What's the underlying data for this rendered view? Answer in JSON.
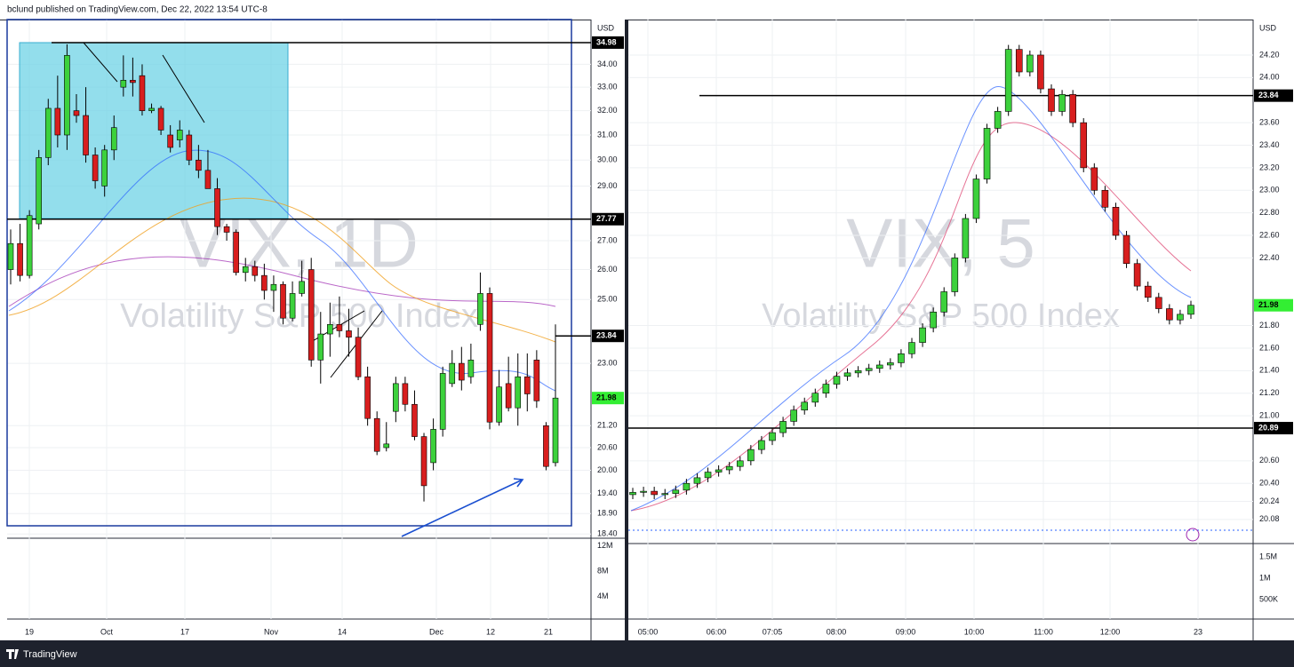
{
  "header": {
    "publisher": "bclund published on TradingView.com, Dec 22, 2022 13:54 UTC-8"
  },
  "footer": {
    "brand": "TradingView"
  },
  "colors": {
    "up": "#3cd13c",
    "down": "#d81e1e",
    "last": "#33ee33"
  },
  "charts": [
    {
      "symbol": "VIX, 1D",
      "name": "Volatility S&P 500 Index",
      "currency": "USD",
      "log_scale": true,
      "ylim": [
        18.6,
        36.05
      ],
      "yticks": [
        {
          "value": 34,
          "label": "34.00"
        },
        {
          "value": 33,
          "label": "33.00"
        },
        {
          "value": 32,
          "label": "32.00"
        },
        {
          "value": 31,
          "label": "31.00"
        },
        {
          "value": 30,
          "label": "30.00"
        },
        {
          "value": 29,
          "label": "29.00"
        },
        {
          "value": 27,
          "label": "27.00"
        },
        {
          "value": 26,
          "label": "26.00"
        },
        {
          "value": 25,
          "label": "25.00"
        },
        {
          "value": 23,
          "label": "23.00"
        },
        {
          "value": 21.2,
          "label": "21.20"
        },
        {
          "value": 20.6,
          "label": "20.60"
        },
        {
          "value": 20,
          "label": "20.00"
        },
        {
          "value": 19.4,
          "label": "19.40"
        },
        {
          "value": 18.9,
          "label": "18.90"
        },
        {
          "value": 18.4,
          "label": "18.40"
        }
      ],
      "price_tags": [
        34.98,
        27.77,
        23.84,
        21.98
      ],
      "volume_ylim": [
        0,
        13200000
      ],
      "volume_ticks": [
        {
          "value": 12000000,
          "label": "12M"
        },
        {
          "value": 8000000,
          "label": "8M"
        },
        {
          "value": 4000000,
          "label": "4M"
        }
      ],
      "time_labels": [
        "19",
        "Oct",
        "17",
        "Nov",
        "14",
        "Dec",
        "12",
        "21"
      ],
      "candles": [
        [
          26.0,
          27.4,
          25.5,
          26.9
        ],
        [
          26.9,
          27.6,
          25.6,
          25.8
        ],
        [
          25.8,
          28.1,
          25.7,
          27.9
        ],
        [
          27.6,
          30.4,
          27.4,
          30.1
        ],
        [
          30.1,
          32.5,
          29.8,
          32.1
        ],
        [
          32.1,
          33.5,
          30.5,
          31.0
        ],
        [
          31.0,
          34.9,
          30.4,
          34.4
        ],
        [
          32.0,
          32.7,
          31.5,
          31.8
        ],
        [
          31.8,
          33.0,
          29.9,
          30.2
        ],
        [
          30.2,
          30.5,
          28.9,
          29.2
        ],
        [
          29.0,
          30.6,
          28.6,
          30.4
        ],
        [
          30.4,
          31.8,
          30.0,
          31.3
        ],
        [
          33.0,
          34.4,
          32.6,
          33.3
        ],
        [
          33.3,
          34.3,
          32.6,
          33.2
        ],
        [
          33.5,
          34.0,
          31.8,
          32.0
        ],
        [
          32.0,
          32.3,
          31.9,
          32.1
        ],
        [
          32.1,
          32.2,
          31.0,
          31.2
        ],
        [
          31.0,
          31.4,
          30.3,
          30.5
        ],
        [
          30.8,
          31.6,
          30.5,
          31.2
        ],
        [
          31.0,
          31.2,
          29.8,
          30.0
        ],
        [
          30.0,
          30.6,
          29.3,
          29.6
        ],
        [
          29.6,
          30.4,
          28.9,
          28.9
        ],
        [
          28.9,
          29.3,
          27.2,
          27.5
        ],
        [
          27.5,
          27.6,
          27.0,
          27.3
        ],
        [
          27.3,
          27.4,
          25.8,
          25.9
        ],
        [
          25.9,
          26.4,
          25.6,
          26.1
        ],
        [
          26.1,
          26.3,
          25.6,
          25.8
        ],
        [
          25.8,
          26.2,
          25.0,
          25.3
        ],
        [
          25.3,
          25.8,
          24.6,
          25.5
        ],
        [
          25.5,
          25.6,
          24.2,
          24.4
        ],
        [
          24.4,
          25.6,
          24.3,
          25.2
        ],
        [
          25.2,
          26.3,
          25.1,
          25.6
        ],
        [
          26.0,
          26.4,
          22.9,
          23.1
        ],
        [
          23.1,
          24.6,
          22.4,
          23.9
        ],
        [
          23.9,
          24.9,
          23.2,
          24.2
        ],
        [
          24.2,
          25.1,
          23.8,
          24.0
        ],
        [
          24.0,
          24.7,
          23.2,
          23.8
        ],
        [
          23.8,
          24.1,
          22.5,
          22.6
        ],
        [
          22.6,
          22.9,
          21.2,
          21.4
        ],
        [
          21.4,
          21.6,
          20.4,
          20.5
        ],
        [
          20.6,
          21.3,
          20.5,
          20.7
        ],
        [
          21.6,
          22.6,
          21.3,
          22.4
        ],
        [
          22.4,
          22.6,
          21.6,
          21.8
        ],
        [
          21.8,
          22.2,
          20.8,
          20.9
        ],
        [
          20.9,
          21.0,
          19.2,
          19.6
        ],
        [
          20.2,
          21.4,
          20.0,
          21.1
        ],
        [
          21.1,
          22.9,
          20.9,
          22.7
        ],
        [
          22.4,
          23.4,
          22.3,
          23.0
        ],
        [
          23.0,
          23.5,
          22.2,
          22.5
        ],
        [
          22.6,
          23.6,
          22.4,
          23.1
        ],
        [
          24.2,
          25.9,
          24.0,
          25.2
        ],
        [
          25.2,
          25.4,
          21.1,
          21.3
        ],
        [
          21.3,
          22.8,
          21.2,
          22.3
        ],
        [
          22.4,
          23.2,
          21.6,
          21.7
        ],
        [
          21.7,
          23.3,
          21.2,
          22.6
        ],
        [
          22.6,
          23.3,
          21.6,
          22.1
        ],
        [
          23.1,
          23.4,
          21.7,
          21.9
        ],
        [
          21.2,
          21.3,
          20.0,
          20.1
        ],
        [
          20.2,
          24.2,
          20.1,
          21.98
        ]
      ]
    },
    {
      "symbol": "VIX, 5",
      "name": "Volatility S&P 500 Index",
      "currency": "USD",
      "log_scale": false,
      "ylim": [
        19.866,
        24.515
      ],
      "yticks": [
        {
          "value": 24.2,
          "label": "24.20"
        },
        {
          "value": 24,
          "label": "24.00"
        },
        {
          "value": 23.6,
          "label": "23.60"
        },
        {
          "value": 23.4,
          "label": "23.40"
        },
        {
          "value": 23.2,
          "label": "23.20"
        },
        {
          "value": 23,
          "label": "23.00"
        },
        {
          "value": 22.8,
          "label": "22.80"
        },
        {
          "value": 22.6,
          "label": "22.60"
        },
        {
          "value": 22.4,
          "label": "22.40"
        },
        {
          "value": 21.8,
          "label": "21.80"
        },
        {
          "value": 21.6,
          "label": "21.60"
        },
        {
          "value": 21.4,
          "label": "21.40"
        },
        {
          "value": 21.2,
          "label": "21.20"
        },
        {
          "value": 21,
          "label": "21.00"
        },
        {
          "value": 20.6,
          "label": "20.60"
        },
        {
          "value": 20.4,
          "label": "20.40"
        },
        {
          "value": 20.24,
          "label": "20.24"
        },
        {
          "value": 20.08,
          "label": "20.08"
        }
      ],
      "price_tags": [
        23.84,
        21.98,
        20.89
      ],
      "volume_ylim": [
        0,
        1812500
      ],
      "volume_ticks": [
        {
          "value": 1500000,
          "label": "1.5M"
        },
        {
          "value": 1000000,
          "label": "1M"
        },
        {
          "value": 500000,
          "label": "500K"
        }
      ],
      "time_labels": [
        "05:00",
        "06:00",
        "07:05",
        "08:00",
        "09:00",
        "10:00",
        "11:00",
        "12:00",
        "23"
      ],
      "open": [
        20.3,
        20.32,
        20.33,
        20.3,
        20.31,
        20.34,
        20.4,
        20.45,
        20.5,
        20.52,
        20.55,
        20.6,
        20.7,
        20.78,
        20.85,
        20.95,
        21.05,
        21.12,
        21.2,
        21.28,
        21.35,
        21.38,
        21.4,
        21.42,
        21.45,
        21.47,
        21.55,
        21.65,
        21.78,
        21.92,
        22.1,
        22.4,
        22.75,
        23.1,
        23.55,
        23.7,
        24.25,
        24.05,
        24.2,
        23.9,
        23.7,
        23.85,
        23.6,
        23.2,
        23.0,
        22.85,
        22.6,
        22.35,
        22.15,
        22.05,
        21.95,
        21.85,
        21.9
      ],
      "high": [
        20.36,
        20.37,
        20.37,
        20.35,
        20.38,
        20.44,
        20.49,
        20.54,
        20.56,
        20.59,
        20.64,
        20.74,
        20.82,
        20.89,
        20.99,
        21.09,
        21.16,
        21.24,
        21.32,
        21.39,
        21.42,
        21.44,
        21.46,
        21.49,
        21.51,
        21.59,
        21.69,
        21.82,
        21.96,
        22.14,
        22.44,
        22.79,
        23.14,
        23.59,
        23.74,
        24.29,
        24.29,
        24.24,
        24.24,
        23.94,
        23.89,
        23.89,
        23.64,
        23.24,
        23.04,
        22.89,
        22.64,
        22.39,
        22.19,
        22.09,
        21.99,
        21.94,
        22.02
      ],
      "low": [
        20.26,
        20.28,
        20.26,
        20.26,
        20.27,
        20.3,
        20.36,
        20.41,
        20.46,
        20.48,
        20.51,
        20.56,
        20.66,
        20.74,
        20.81,
        20.91,
        21.01,
        21.08,
        21.16,
        21.24,
        21.31,
        21.34,
        21.36,
        21.38,
        21.41,
        21.43,
        21.51,
        21.61,
        21.74,
        21.88,
        22.06,
        22.36,
        22.71,
        23.06,
        23.51,
        23.66,
        24.01,
        24.01,
        23.86,
        23.66,
        23.66,
        23.56,
        23.16,
        22.96,
        22.81,
        22.56,
        22.31,
        22.11,
        22.01,
        21.91,
        21.81,
        21.81,
        21.86
      ],
      "close": [
        20.32,
        20.33,
        20.3,
        20.31,
        20.34,
        20.4,
        20.45,
        20.5,
        20.52,
        20.55,
        20.6,
        20.7,
        20.78,
        20.85,
        20.95,
        21.05,
        21.12,
        21.2,
        21.28,
        21.35,
        21.38,
        21.4,
        21.42,
        21.45,
        21.47,
        21.55,
        21.65,
        21.78,
        21.92,
        22.1,
        22.4,
        22.75,
        23.1,
        23.55,
        23.7,
        24.25,
        24.05,
        24.2,
        23.9,
        23.7,
        23.85,
        23.6,
        23.2,
        23.0,
        22.85,
        22.6,
        22.35,
        22.15,
        22.05,
        21.95,
        21.85,
        21.9,
        21.98
      ]
    }
  ]
}
